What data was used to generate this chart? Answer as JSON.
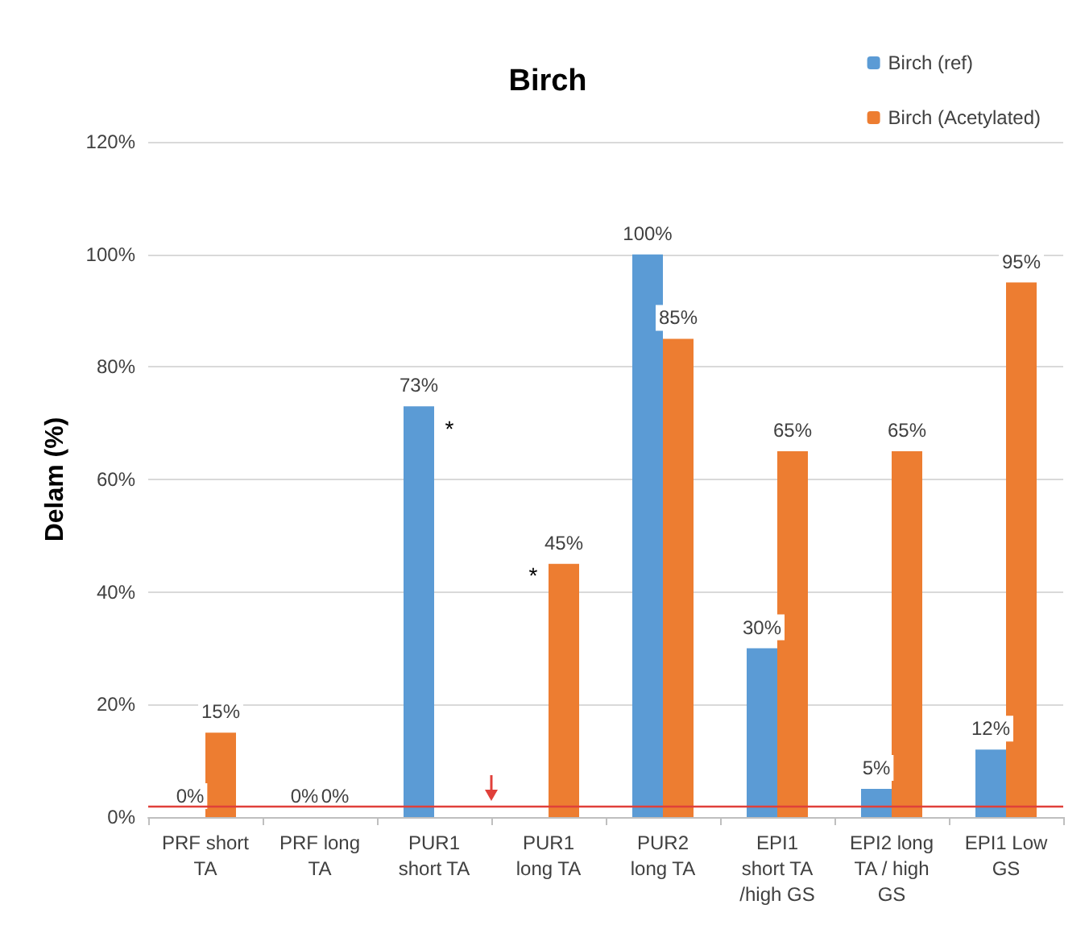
{
  "chart_data": {
    "type": "bar",
    "title": "Birch",
    "ylabel": "Delam (%)",
    "categories": [
      "PRF short\nTA",
      "PRF long\nTA",
      "PUR1\nshort TA",
      "PUR1\nlong TA",
      "PUR2\nlong TA",
      "EPI1\nshort TA\n/high GS",
      "EPI2 long\nTA / high\nGS",
      "EPI1 Low\nGS"
    ],
    "series": [
      {
        "name": "Birch (ref)",
        "color": "#5b9bd5",
        "values": [
          0,
          0,
          73,
          null,
          100,
          30,
          5,
          12
        ],
        "value_labels": [
          "0%",
          "0%",
          "73%",
          null,
          "100%",
          "30%",
          "5%",
          "12%"
        ]
      },
      {
        "name": "Birch (Acetylated)",
        "color": "#ed7d31",
        "values": [
          15,
          0,
          null,
          45,
          85,
          65,
          65,
          95
        ],
        "value_labels": [
          "15%",
          "0%",
          null,
          "45%",
          "85%",
          "65%",
          "65%",
          "95%"
        ]
      }
    ],
    "ylim": [
      0,
      120
    ],
    "yticks": [
      {
        "value": 0,
        "label": "0%"
      },
      {
        "value": 20,
        "label": "20%"
      },
      {
        "value": 40,
        "label": "40%"
      },
      {
        "value": 60,
        "label": "60%"
      },
      {
        "value": 80,
        "label": "80%"
      },
      {
        "value": 100,
        "label": "100%"
      },
      {
        "value": 120,
        "label": "120%"
      }
    ],
    "annotations": [
      {
        "text": "*",
        "x": "PUR1\nshort TA",
        "y": 69
      },
      {
        "text": "*",
        "x": "PUR1\nlong TA",
        "y": 43
      }
    ],
    "ref_lines": [
      {
        "axis": "y",
        "value": 2,
        "color": "#e0403a"
      }
    ],
    "grid": "y",
    "legend": "top right"
  }
}
